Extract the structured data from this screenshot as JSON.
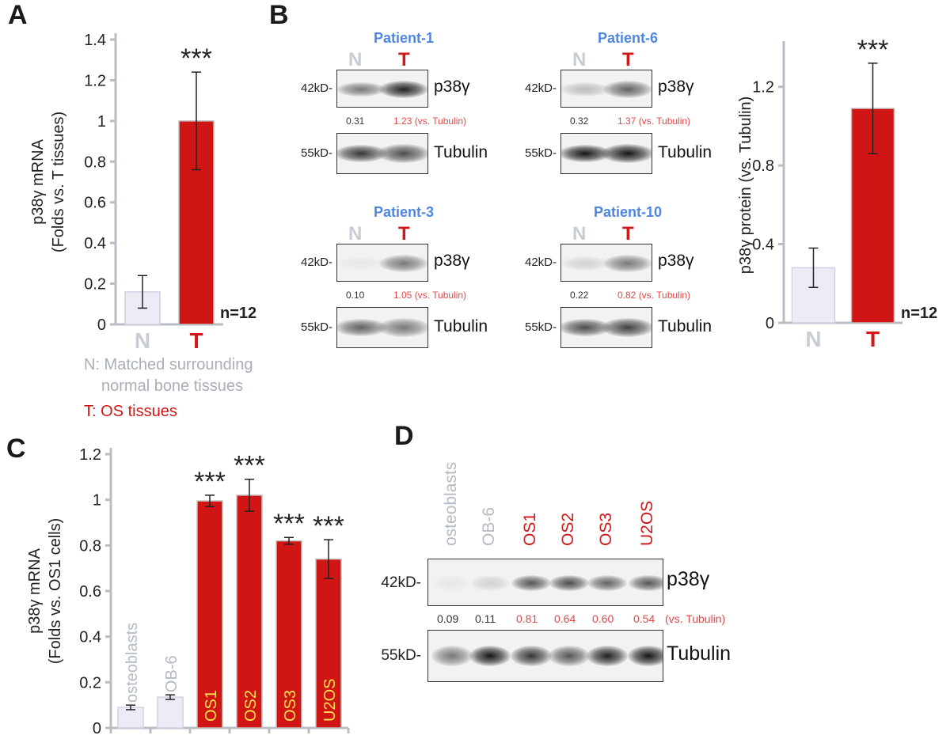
{
  "panels": {
    "a": "A",
    "b": "B",
    "c": "C",
    "d": "D"
  },
  "colors": {
    "n_bar": "#eeeaf6",
    "t_bar": "#d01515",
    "n_text": "#c8ccd4",
    "t_text": "#d01818",
    "patient": "#4f86e0",
    "in_bar_text": "#ffe14d",
    "ratio_red": "#e04848"
  },
  "legend": {
    "n_line1": "N: Matched surrounding",
    "n_line2": "normal bone tissues",
    "t_line": "T: OS tissues"
  },
  "chart_data": [
    {
      "id": "A",
      "type": "bar",
      "categories": [
        "N",
        "T"
      ],
      "values": [
        0.16,
        1.0
      ],
      "errors": [
        0.08,
        0.24
      ],
      "significance": [
        "",
        "***"
      ],
      "ylabel": "p38γ mRNA\n(Folds vs. T tissues)",
      "ylim": [
        0,
        1.4
      ],
      "yticks": [
        "0",
        "0.2",
        "0.4",
        "0.6",
        "0.8",
        "1",
        "1.2",
        "1.4"
      ],
      "annotation": "n=12"
    },
    {
      "id": "B-quant",
      "type": "bar",
      "categories": [
        "N",
        "T"
      ],
      "values": [
        0.28,
        1.09
      ],
      "errors": [
        0.1,
        0.23
      ],
      "significance": [
        "",
        "***"
      ],
      "ylabel": "p38γ protein (vs. Tubulin)",
      "ylim": [
        0,
        1.4
      ],
      "yticks": [
        "0",
        "0.4",
        "0.8",
        "1.2"
      ],
      "annotation": "n=12"
    },
    {
      "id": "C",
      "type": "bar",
      "categories": [
        "osteoblasts",
        "OB-6",
        "OS1",
        "OS2",
        "OS3",
        "U2OS"
      ],
      "values": [
        0.09,
        0.135,
        0.995,
        1.02,
        0.82,
        0.74
      ],
      "errors": [
        0.01,
        0.01,
        0.025,
        0.07,
        0.015,
        0.085
      ],
      "significance": [
        "",
        "",
        "***",
        "***",
        "***",
        "***"
      ],
      "ylabel": "p38γ mRNA\n(Folds vs. OS1 cells)",
      "ylim": [
        0,
        1.2
      ],
      "yticks": [
        "0",
        "0.2",
        "0.4",
        "0.6",
        "0.8",
        "1",
        "1.2"
      ]
    }
  ],
  "blots_b": [
    {
      "patient": "Patient-1",
      "n": "N",
      "t": "T",
      "mw1": "42kD-",
      "prot1": "p38γ",
      "q_n": "0.31",
      "q_t": "1.23 (vs. Tubulin)",
      "mw2": "55kD-",
      "prot2": "Tubulin"
    },
    {
      "patient": "Patient-6",
      "n": "N",
      "t": "T",
      "mw1": "42kD-",
      "prot1": "p38γ",
      "q_n": "0.32",
      "q_t": "1.37 (vs. Tubulin)",
      "mw2": "55kD-",
      "prot2": "Tubulin"
    },
    {
      "patient": "Patient-3",
      "n": "N",
      "t": "T",
      "mw1": "42kD-",
      "prot1": "p38γ",
      "q_n": "0.10",
      "q_t": "1.05 (vs. Tubulin)",
      "mw2": "55kD-",
      "prot2": "Tubulin"
    },
    {
      "patient": "Patient-10",
      "n": "N",
      "t": "T",
      "mw1": "42kD-",
      "prot1": "p38γ",
      "q_n": "0.22",
      "q_t": "0.82 (vs. Tubulin)",
      "mw2": "55kD-",
      "prot2": "Tubulin"
    }
  ],
  "blot_d": {
    "lanes": [
      "osteoblasts",
      "OB-6",
      "OS1",
      "OS2",
      "OS3",
      "U2OS"
    ],
    "mw1": "42kD-",
    "prot1": "p38γ",
    "ratios": [
      "0.09",
      "0.11",
      "0.81",
      "0.64",
      "0.60",
      "0.54"
    ],
    "ratio_suffix": "(vs. Tubulin)",
    "mw2": "55kD-",
    "prot2": "Tubulin"
  }
}
